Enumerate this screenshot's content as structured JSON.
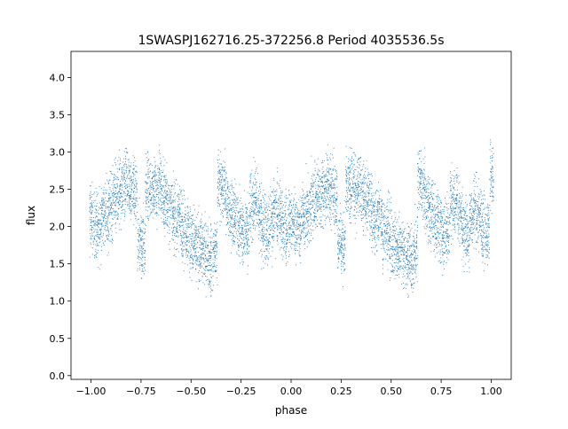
{
  "chart_data": {
    "type": "scatter",
    "title": "1SWASPJ162716.25-372256.8 Period 4035536.5s",
    "xlabel": "phase",
    "ylabel": "flux",
    "xlim": [
      -1.1,
      1.1
    ],
    "ylim": [
      -0.05,
      4.35
    ],
    "xticks": [
      -1.0,
      -0.75,
      -0.5,
      -0.25,
      0.0,
      0.25,
      0.5,
      0.75,
      1.0
    ],
    "xtick_labels": [
      "−1.00",
      "−0.75",
      "−0.50",
      "−0.25",
      "0.00",
      "0.25",
      "0.50",
      "0.75",
      "1.00"
    ],
    "yticks": [
      0.0,
      0.5,
      1.0,
      1.5,
      2.0,
      2.5,
      3.0,
      3.5,
      4.0
    ],
    "ytick_labels": [
      "0.0",
      "0.5",
      "1.0",
      "1.5",
      "2.0",
      "2.5",
      "3.0",
      "3.5",
      "4.0"
    ],
    "grid": false,
    "legend": "none",
    "marker_color": "#1f77b4",
    "series": [
      {
        "points_note_free": true,
        "x": [
          -1.0,
          -0.98,
          -0.96,
          -0.94,
          -0.92,
          -0.9,
          -0.88,
          -0.86,
          -0.84,
          -0.82,
          -0.8,
          -0.78,
          -0.76,
          -0.74,
          -0.72,
          -0.7,
          -0.68,
          -0.66,
          -0.64,
          -0.62,
          -0.6,
          -0.58,
          -0.56,
          -0.54,
          -0.52,
          -0.5,
          -0.48,
          -0.46,
          -0.44,
          -0.42,
          -0.4,
          -0.38,
          -0.36,
          -0.34,
          -0.32,
          -0.3,
          -0.28,
          -0.26,
          -0.24,
          -0.22,
          -0.2,
          -0.18,
          -0.16,
          -0.14,
          -0.12,
          -0.1,
          -0.08,
          -0.06,
          -0.04,
          -0.02,
          0.0,
          0.02,
          0.04,
          0.06,
          0.08,
          0.1,
          0.12,
          0.14,
          0.16,
          0.18,
          0.2,
          0.22,
          0.24,
          0.26,
          0.28,
          0.3,
          0.32,
          0.34,
          0.36,
          0.38,
          0.4,
          0.42,
          0.44,
          0.46,
          0.48,
          0.5,
          0.52,
          0.54,
          0.56,
          0.58,
          0.6,
          0.62,
          0.64,
          0.66,
          0.68,
          0.7,
          0.72,
          0.74,
          0.76,
          0.78,
          0.8,
          0.82,
          0.84,
          0.86,
          0.88,
          0.9,
          0.92,
          0.94,
          0.96,
          0.98,
          1.0
        ],
        "y": [
          2.1,
          2.05,
          2.0,
          2.15,
          2.2,
          2.3,
          2.4,
          2.45,
          2.5,
          2.55,
          2.5,
          2.45,
          1.8,
          1.75,
          2.5,
          2.55,
          2.45,
          2.6,
          2.4,
          2.35,
          2.2,
          2.1,
          2.15,
          2.0,
          1.95,
          1.8,
          1.75,
          1.7,
          1.65,
          1.6,
          1.55,
          1.7,
          2.6,
          2.5,
          2.3,
          2.2,
          2.1,
          2.0,
          1.9,
          1.95,
          2.3,
          2.35,
          2.2,
          2.0,
          1.9,
          2.1,
          2.2,
          2.15,
          2.0,
          1.95,
          2.1,
          2.05,
          2.0,
          2.15,
          2.2,
          2.3,
          2.4,
          2.45,
          2.5,
          2.55,
          2.5,
          2.45,
          1.8,
          1.75,
          2.5,
          2.55,
          2.45,
          2.6,
          2.4,
          2.35,
          2.2,
          2.1,
          2.15,
          2.0,
          1.95,
          1.8,
          1.75,
          1.7,
          1.65,
          1.6,
          1.55,
          1.7,
          2.6,
          2.5,
          2.3,
          2.2,
          2.1,
          2.0,
          1.9,
          1.95,
          2.3,
          2.35,
          2.2,
          2.0,
          1.9,
          2.1,
          2.2,
          2.15,
          2.0,
          1.95,
          2.7
        ]
      }
    ]
  }
}
